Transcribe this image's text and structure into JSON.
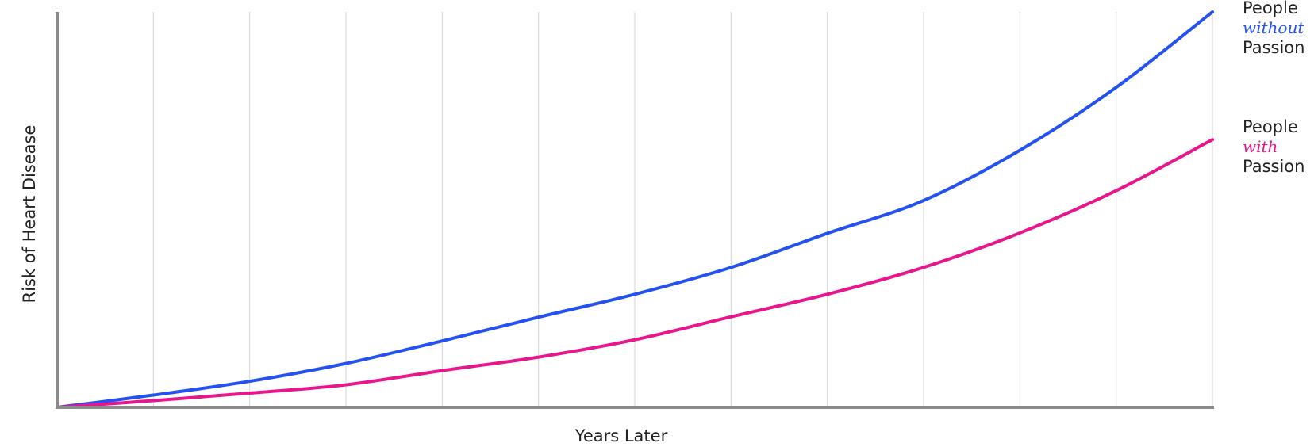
{
  "chart_data": {
    "type": "line",
    "xlabel": "Years Later",
    "ylabel": "Risk of Heart Disease",
    "x": [
      0,
      1,
      2,
      3,
      4,
      5,
      6,
      7,
      8,
      9,
      10,
      11,
      12
    ],
    "ylim": [
      0,
      100
    ],
    "grid": "vertical",
    "legend_placement": "right, at line ends",
    "series": [
      {
        "name": "People without Passion",
        "legend": {
          "line1": "People",
          "qualifier": "without",
          "line2": "Passion"
        },
        "color": "#2352f0",
        "values": [
          0,
          3.1,
          6.6,
          11.1,
          16.8,
          22.8,
          28.6,
          35.4,
          44.0,
          52.3,
          65.0,
          80.9,
          100.0
        ]
      },
      {
        "name": "People with Passion",
        "legend": {
          "line1": "People",
          "qualifier": "with",
          "line2": "Passion"
        },
        "color": "#e8158c",
        "values": [
          0,
          1.7,
          3.6,
          5.7,
          9.3,
          12.7,
          17.1,
          22.9,
          28.6,
          35.4,
          44.1,
          54.8,
          67.7
        ]
      }
    ]
  }
}
